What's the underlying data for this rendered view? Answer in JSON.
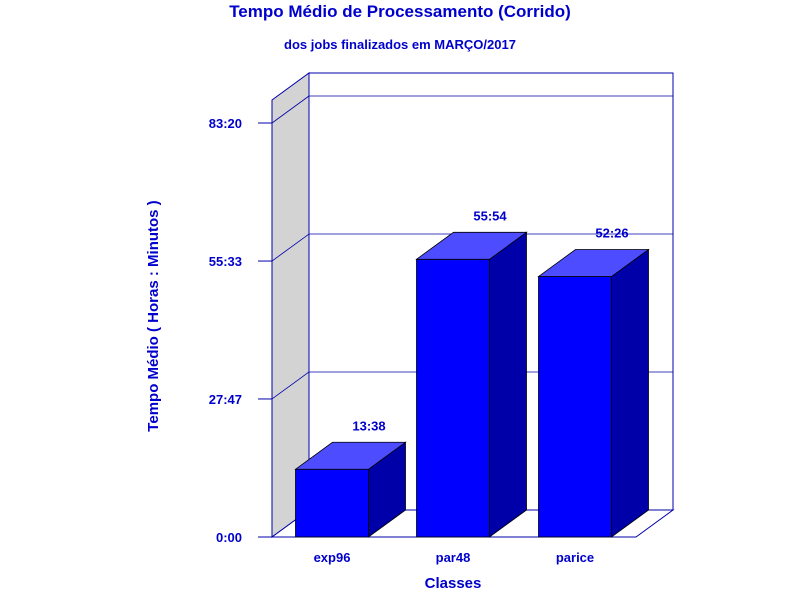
{
  "chart_data": {
    "type": "bar",
    "title": "Tempo Médio de Processamento (Corrido)",
    "subtitle": "dos jobs finalizados em MARÇO/2017",
    "xlabel": "Classes",
    "ylabel": "Tempo Médio ( Horas : Minutos )",
    "categories": [
      "exp96",
      "par48",
      "parice"
    ],
    "values_minutes": [
      818,
      3354,
      3146
    ],
    "value_labels": [
      "13:38",
      "55:54",
      "52:26"
    ],
    "y_ticks": [
      {
        "minutes": 0,
        "label": "0:00"
      },
      {
        "minutes": 1667,
        "label": "27:47"
      },
      {
        "minutes": 3333,
        "label": "55:33"
      },
      {
        "minutes": 5000,
        "label": "83:20"
      }
    ],
    "ylim_minutes": [
      0,
      5000
    ],
    "grid": true,
    "legend": "none",
    "colors": {
      "text": "#0000cc",
      "bar_front": "#0000ff",
      "bar_top": "#4d4dff",
      "bar_side": "#0000a8",
      "frame": "#0000aa",
      "wall": "#d3d3d3"
    }
  }
}
